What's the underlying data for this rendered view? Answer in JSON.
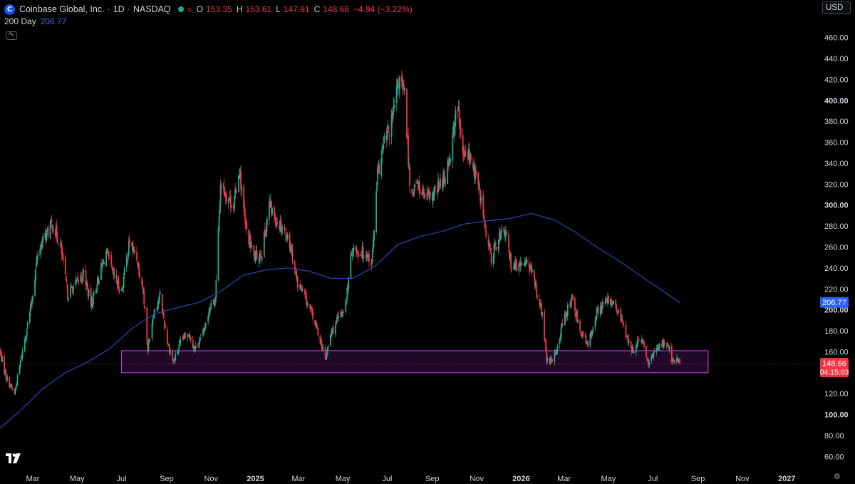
{
  "header": {
    "logo_letter": "C",
    "symbol": "Coinbase Global, Inc.",
    "interval": "1D",
    "exchange": "NASDAQ",
    "ohlc": [
      {
        "key": "O",
        "value": "153.35"
      },
      {
        "key": "H",
        "value": "153.61"
      },
      {
        "key": "L",
        "value": "147.91"
      },
      {
        "key": "C",
        "value": "148.66"
      }
    ],
    "change": "−4.94 (−3.22%)"
  },
  "indicator": {
    "name": "200 Day",
    "value": "206.77"
  },
  "currency": "USD",
  "colors": {
    "background": "#000000",
    "up": "#22ab94",
    "down": "#f23645",
    "ma": "#2f3fa8",
    "zone_fill": "#3a0f4a",
    "zone_border": "#b23ad6",
    "price_label": "#f23645",
    "ma_label": "#2962ff"
  },
  "chart_data": {
    "type": "candlestick",
    "ylim": [
      48,
      472
    ],
    "y_ticks": [
      60,
      80,
      100,
      120,
      140,
      160,
      180,
      200,
      220,
      240,
      260,
      280,
      300,
      320,
      340,
      360,
      380,
      400,
      420,
      440,
      460
    ],
    "y_tick_labels": [
      "60.00",
      "80.00",
      "100.00",
      "120.00",
      "140.00",
      "160.00",
      "180.00",
      "200.00",
      "220.00",
      "240.00",
      "260.00",
      "280.00",
      "300.00",
      "320.00",
      "340.00",
      "360.00",
      "380.00",
      "400.00",
      "420.00",
      "440.00",
      "460.00"
    ],
    "bold_ticks": [
      100,
      200,
      300,
      400
    ],
    "x_range": [
      "2024-01-16",
      "2027-02-07"
    ],
    "x_ticks": [
      {
        "date": "2024-03-01",
        "label": "Mar"
      },
      {
        "date": "2024-05-01",
        "label": "May"
      },
      {
        "date": "2024-07-01",
        "label": "Jul"
      },
      {
        "date": "2024-09-01",
        "label": "Sep"
      },
      {
        "date": "2024-11-01",
        "label": "Nov"
      },
      {
        "date": "2025-01-01",
        "label": "2025"
      },
      {
        "date": "2025-03-01",
        "label": "Mar"
      },
      {
        "date": "2025-05-01",
        "label": "May"
      },
      {
        "date": "2025-07-01",
        "label": "Jul"
      },
      {
        "date": "2025-09-01",
        "label": "Sep"
      },
      {
        "date": "2025-11-01",
        "label": "Nov"
      },
      {
        "date": "2026-01-01",
        "label": "2026"
      },
      {
        "date": "2026-03-01",
        "label": "Mar"
      },
      {
        "date": "2026-05-01",
        "label": "May"
      },
      {
        "date": "2026-07-01",
        "label": "Jul"
      },
      {
        "date": "2026-09-01",
        "label": "Sep"
      },
      {
        "date": "2026-11-01",
        "label": "Nov"
      },
      {
        "date": "2027-01-01",
        "label": "2027"
      }
    ],
    "price_path": [
      [
        "2024-01-16",
        160
      ],
      [
        "2024-01-25",
        135
      ],
      [
        "2024-02-05",
        120
      ],
      [
        "2024-02-13",
        150
      ],
      [
        "2024-02-20",
        175
      ],
      [
        "2024-02-28",
        205
      ],
      [
        "2024-03-08",
        255
      ],
      [
        "2024-03-18",
        270
      ],
      [
        "2024-03-28",
        282
      ],
      [
        "2024-04-08",
        262
      ],
      [
        "2024-04-18",
        215
      ],
      [
        "2024-04-30",
        225
      ],
      [
        "2024-05-10",
        235
      ],
      [
        "2024-05-20",
        205
      ],
      [
        "2024-05-30",
        230
      ],
      [
        "2024-06-10",
        255
      ],
      [
        "2024-06-20",
        232
      ],
      [
        "2024-07-01",
        218
      ],
      [
        "2024-07-12",
        265
      ],
      [
        "2024-07-22",
        250
      ],
      [
        "2024-07-31",
        218
      ],
      [
        "2024-08-06",
        162
      ],
      [
        "2024-08-14",
        198
      ],
      [
        "2024-08-23",
        213
      ],
      [
        "2024-09-02",
        170
      ],
      [
        "2024-09-10",
        150
      ],
      [
        "2024-09-20",
        168
      ],
      [
        "2024-09-30",
        180
      ],
      [
        "2024-10-10",
        162
      ],
      [
        "2024-10-22",
        180
      ],
      [
        "2024-10-31",
        205
      ],
      [
        "2024-11-07",
        210
      ],
      [
        "2024-11-14",
        320
      ],
      [
        "2024-11-22",
        310
      ],
      [
        "2024-12-02",
        300
      ],
      [
        "2024-12-10",
        335
      ],
      [
        "2024-12-18",
        280
      ],
      [
        "2024-12-30",
        250
      ],
      [
        "2025-01-10",
        255
      ],
      [
        "2025-01-20",
        300
      ],
      [
        "2025-01-30",
        285
      ],
      [
        "2025-02-07",
        280
      ],
      [
        "2025-02-18",
        262
      ],
      [
        "2025-02-28",
        225
      ],
      [
        "2025-03-10",
        212
      ],
      [
        "2025-03-20",
        195
      ],
      [
        "2025-03-31",
        172
      ],
      [
        "2025-04-07",
        152
      ],
      [
        "2025-04-15",
        178
      ],
      [
        "2025-04-24",
        190
      ],
      [
        "2025-05-05",
        205
      ],
      [
        "2025-05-14",
        260
      ],
      [
        "2025-05-22",
        255
      ],
      [
        "2025-06-02",
        255
      ],
      [
        "2025-06-10",
        245
      ],
      [
        "2025-06-18",
        330
      ],
      [
        "2025-06-27",
        360
      ],
      [
        "2025-07-08",
        380
      ],
      [
        "2025-07-17",
        420
      ],
      [
        "2025-07-25",
        405
      ],
      [
        "2025-08-02",
        310
      ],
      [
        "2025-08-11",
        320
      ],
      [
        "2025-08-20",
        310
      ],
      [
        "2025-08-28",
        305
      ],
      [
        "2025-09-08",
        315
      ],
      [
        "2025-09-17",
        325
      ],
      [
        "2025-09-26",
        350
      ],
      [
        "2025-10-03",
        385
      ],
      [
        "2025-10-07",
        390
      ],
      [
        "2025-10-12",
        345
      ],
      [
        "2025-10-20",
        350
      ],
      [
        "2025-10-30",
        330
      ],
      [
        "2025-11-07",
        305
      ],
      [
        "2025-11-14",
        270
      ],
      [
        "2025-11-21",
        250
      ],
      [
        "2025-12-01",
        270
      ],
      [
        "2025-12-10",
        275
      ],
      [
        "2025-12-18",
        245
      ],
      [
        "2025-12-30",
        240
      ],
      [
        "2026-01-09",
        250
      ],
      [
        "2026-01-20",
        225
      ],
      [
        "2026-01-30",
        195
      ],
      [
        "2026-02-05",
        152
      ],
      [
        "2026-02-12",
        150
      ],
      [
        "2026-02-20",
        165
      ],
      [
        "2026-03-02",
        195
      ],
      [
        "2026-03-12",
        210
      ],
      [
        "2026-03-24",
        180
      ],
      [
        "2026-04-03",
        165
      ],
      [
        "2026-04-13",
        195
      ],
      [
        "2026-04-23",
        205
      ],
      [
        "2026-05-04",
        210
      ],
      [
        "2026-05-12",
        200
      ],
      [
        "2026-05-22",
        185
      ],
      [
        "2026-06-01",
        160
      ],
      [
        "2026-06-10",
        168
      ],
      [
        "2026-06-18",
        170
      ],
      [
        "2026-06-25",
        145
      ],
      [
        "2026-07-02",
        160
      ],
      [
        "2026-07-12",
        168
      ],
      [
        "2026-07-22",
        168
      ],
      [
        "2026-07-28",
        150
      ],
      [
        "2026-08-04",
        153
      ],
      [
        "2026-08-07",
        148.66
      ]
    ],
    "ma200_path": [
      [
        "2024-01-16",
        87
      ],
      [
        "2024-02-15",
        105
      ],
      [
        "2024-03-15",
        125
      ],
      [
        "2024-04-15",
        140
      ],
      [
        "2024-05-15",
        150
      ],
      [
        "2024-06-15",
        163
      ],
      [
        "2024-07-15",
        182
      ],
      [
        "2024-08-15",
        196
      ],
      [
        "2024-09-15",
        202
      ],
      [
        "2024-10-15",
        207
      ],
      [
        "2024-11-15",
        218
      ],
      [
        "2024-12-15",
        233
      ],
      [
        "2025-01-15",
        238
      ],
      [
        "2025-02-15",
        240
      ],
      [
        "2025-03-15",
        237
      ],
      [
        "2025-04-15",
        230
      ],
      [
        "2025-05-15",
        230
      ],
      [
        "2025-06-15",
        242
      ],
      [
        "2025-07-15",
        262
      ],
      [
        "2025-08-15",
        270
      ],
      [
        "2025-09-15",
        275
      ],
      [
        "2025-10-15",
        282
      ],
      [
        "2025-11-15",
        285
      ],
      [
        "2025-12-15",
        287
      ],
      [
        "2026-01-15",
        292
      ],
      [
        "2026-02-15",
        286
      ],
      [
        "2026-03-15",
        275
      ],
      [
        "2026-04-15",
        260
      ],
      [
        "2026-05-15",
        247
      ],
      [
        "2026-06-15",
        232
      ],
      [
        "2026-07-15",
        218
      ],
      [
        "2026-08-07",
        206.77
      ]
    ],
    "support_zone": {
      "from": "2024-07-01",
      "to": "2026-09-15",
      "low": 140,
      "high": 161
    },
    "last_price": {
      "value": 148.66,
      "label": "148.66",
      "countdown": "04:15:03"
    },
    "ma_last": {
      "value": 206.77,
      "label": "206.77"
    }
  }
}
